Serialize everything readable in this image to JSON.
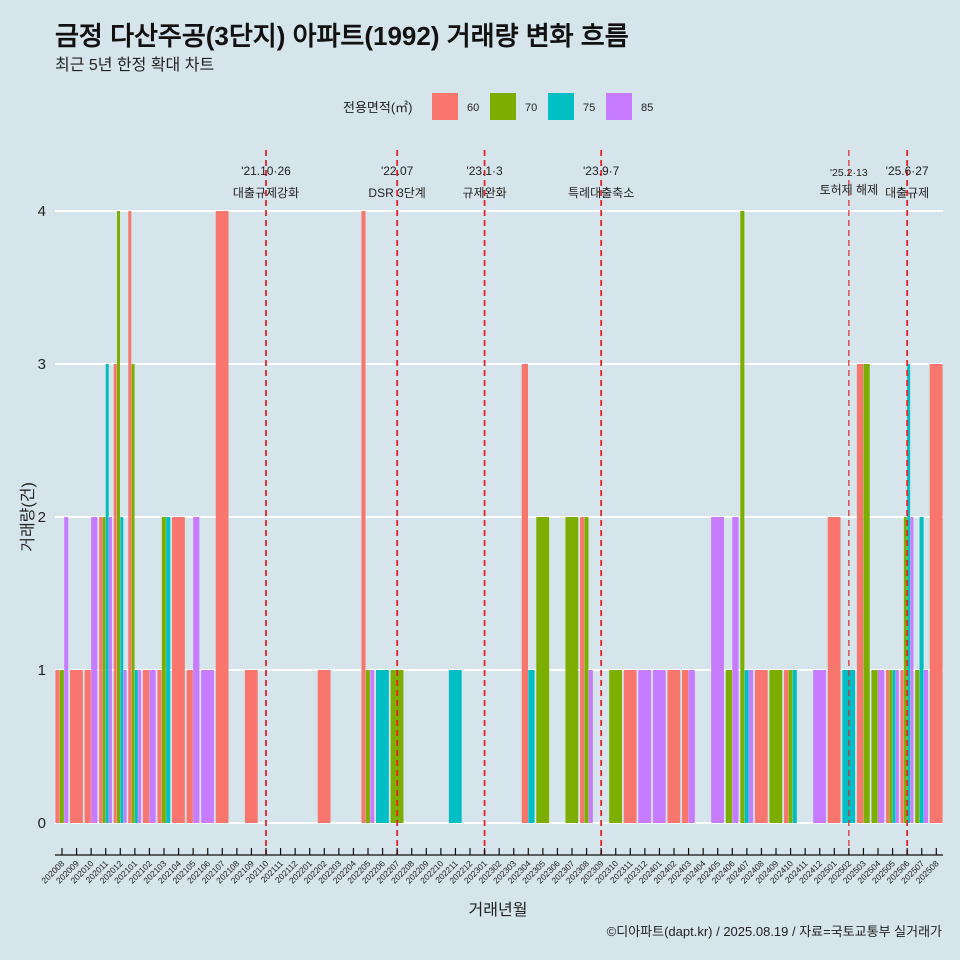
{
  "chart_data": {
    "type": "bar",
    "title": "금정 다산주공(3단지) 아파트(1992) 거래량 변화 흐름",
    "subtitle": "최근 5년 한정 확대 차트",
    "caption": "©디아파트(dapt.kr) / 2025.08.19 / 자료=국토교통부 실거래가",
    "xlabel": "거래년월",
    "ylabel": "거래량(건)",
    "ylim": [
      0,
      4
    ],
    "yticks": [
      0,
      1,
      2,
      3,
      4
    ],
    "grid": true,
    "legend": {
      "title": "전용면적(㎡)",
      "position": "top"
    },
    "categories": [
      "202008",
      "202009",
      "202010",
      "202011",
      "202012",
      "202101",
      "202102",
      "202103",
      "202104",
      "202105",
      "202106",
      "202107",
      "202108",
      "202109",
      "202110",
      "202111",
      "202112",
      "202201",
      "202202",
      "202203",
      "202204",
      "202205",
      "202206",
      "202207",
      "202208",
      "202209",
      "202210",
      "202211",
      "202212",
      "202301",
      "202302",
      "202303",
      "202304",
      "202305",
      "202306",
      "202307",
      "202308",
      "202309",
      "202310",
      "202311",
      "202312",
      "202401",
      "202402",
      "202403",
      "202404",
      "202405",
      "202406",
      "202407",
      "202408",
      "202409",
      "202410",
      "202411",
      "202412",
      "202501",
      "202502",
      "202503",
      "202504",
      "202505",
      "202506",
      "202507",
      "202508"
    ],
    "series": [
      {
        "name": "60",
        "color": "#F8766D",
        "values": [
          1,
          1,
          1,
          2,
          3,
          4,
          1,
          1,
          2,
          1,
          0,
          4,
          0,
          1,
          0,
          0,
          0,
          0,
          1,
          0,
          0,
          4,
          0,
          0,
          0,
          0,
          0,
          0,
          0,
          0,
          0,
          0,
          3,
          0,
          0,
          0,
          2,
          0,
          0,
          1,
          0,
          0,
          1,
          1,
          0,
          0,
          0,
          0,
          1,
          0,
          1,
          0,
          0,
          2,
          0,
          3,
          0,
          1,
          1,
          0,
          3
        ]
      },
      {
        "name": "70",
        "color": "#7CAE00",
        "values": [
          1,
          0,
          0,
          2,
          4,
          3,
          0,
          2,
          0,
          0,
          0,
          0,
          0,
          0,
          0,
          0,
          0,
          0,
          0,
          0,
          0,
          1,
          0,
          1,
          0,
          0,
          0,
          0,
          0,
          0,
          0,
          0,
          0,
          2,
          0,
          2,
          2,
          0,
          1,
          0,
          0,
          0,
          0,
          0,
          0,
          0,
          1,
          4,
          0,
          1,
          1,
          0,
          0,
          0,
          0,
          3,
          1,
          1,
          2,
          1,
          0
        ]
      },
      {
        "name": "75",
        "color": "#00BFC4",
        "values": [
          0,
          0,
          0,
          3,
          2,
          1,
          0,
          2,
          0,
          0,
          0,
          0,
          0,
          0,
          0,
          0,
          0,
          0,
          0,
          0,
          0,
          0,
          1,
          0,
          0,
          0,
          0,
          1,
          0,
          0,
          0,
          0,
          1,
          0,
          0,
          0,
          0,
          0,
          0,
          0,
          0,
          0,
          0,
          0,
          0,
          0,
          0,
          1,
          0,
          0,
          1,
          0,
          0,
          0,
          1,
          0,
          0,
          1,
          3,
          2,
          0
        ]
      },
      {
        "name": "85",
        "color": "#C77CFF",
        "values": [
          2,
          0,
          2,
          2,
          1,
          1,
          1,
          0,
          0,
          2,
          1,
          0,
          0,
          0,
          0,
          0,
          0,
          0,
          0,
          0,
          0,
          1,
          0,
          0,
          0,
          0,
          0,
          0,
          0,
          0,
          0,
          0,
          0,
          0,
          0,
          0,
          1,
          0,
          0,
          0,
          1,
          1,
          0,
          1,
          0,
          2,
          2,
          1,
          0,
          0,
          0,
          0,
          1,
          0,
          0,
          0,
          1,
          1,
          2,
          1,
          0
        ]
      }
    ],
    "annotations": [
      {
        "x": "202110",
        "line1": "'21.10·26",
        "line2": "대출규제강화"
      },
      {
        "x": "202207",
        "line1": "'22.07",
        "line2": "DSR 3단계"
      },
      {
        "x": "202301",
        "line1": "'23.1·3",
        "line2": "규제완화"
      },
      {
        "x": "202309",
        "line1": "'23.9·7",
        "line2": "특례대출축소"
      },
      {
        "x": "202502",
        "line1": "'25.2·13",
        "line2": "토허제 해제"
      },
      {
        "x": "202506",
        "line1": "'25.6·27",
        "line2": "대출규제"
      }
    ],
    "annotation_line_color": "#e3242b",
    "grid_color": "#ffffff",
    "background_color": "#d6e4eb"
  }
}
